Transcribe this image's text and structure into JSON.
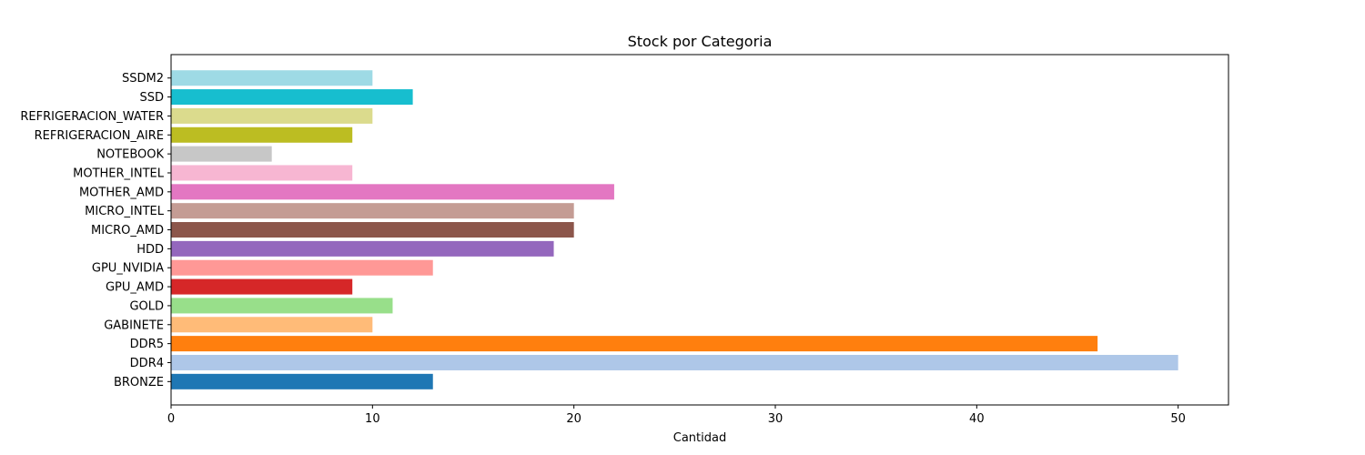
{
  "chart_data": {
    "type": "bar",
    "orientation": "horizontal",
    "title": "Stock por Categoria",
    "xlabel": "Cantidad",
    "ylabel": "",
    "xlim": [
      0,
      52.5
    ],
    "xticks": [
      0,
      10,
      20,
      30,
      40,
      50
    ],
    "grid": false,
    "legend": "none",
    "categories": [
      "BRONZE",
      "DDR4",
      "DDR5",
      "GABINETE",
      "GOLD",
      "GPU_AMD",
      "GPU_NVIDIA",
      "HDD",
      "MICRO_AMD",
      "MICRO_INTEL",
      "MOTHER_AMD",
      "MOTHER_INTEL",
      "NOTEBOOK",
      "REFRIGERACION_AIRE",
      "REFRIGERACION_WATER",
      "SSD",
      "SSDM2"
    ],
    "values": [
      13,
      50,
      46,
      10,
      11,
      9,
      13,
      19,
      20,
      20,
      22,
      9,
      5,
      9,
      10,
      12,
      10
    ],
    "colors": [
      "#1f77b4",
      "#aec7e8",
      "#ff7f0e",
      "#ffbb78",
      "#98df8a",
      "#d62728",
      "#ff9896",
      "#9467bd",
      "#8c564b",
      "#c49c94",
      "#e377c2",
      "#f7b6d2",
      "#c7c7c7",
      "#bcbd22",
      "#dbdb8d",
      "#17becf",
      "#9edae5"
    ]
  }
}
